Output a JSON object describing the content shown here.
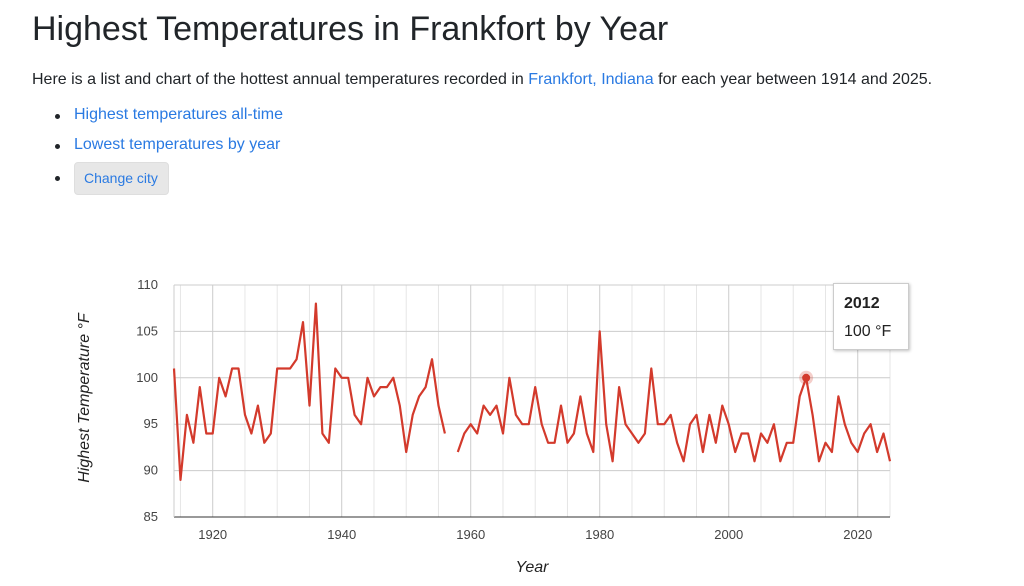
{
  "page": {
    "title": "Highest Temperatures in Frankfort by Year",
    "intro_before": "Here is a list and chart of the hottest annual temperatures recorded in ",
    "intro_link": "Frankfort, Indiana",
    "intro_after": " for each year between 1914 and 2025."
  },
  "links": {
    "all_time": "Highest temperatures all-time",
    "lowest": "Lowest temperatures by year",
    "change_city": "Change city"
  },
  "tooltip": {
    "year": "2012",
    "value": "100 °F"
  },
  "colors": {
    "line": "#d33a2c",
    "grid": "#e6e6e6",
    "grid_major": "#cccccc",
    "link": "#2a7ae2"
  },
  "chart_data": {
    "type": "line",
    "xlabel": "Year",
    "ylabel": "Highest Temperature °F",
    "xlim": [
      1914,
      2025
    ],
    "ylim": [
      85,
      110
    ],
    "x_ticks": [
      1920,
      1940,
      1960,
      1980,
      2000,
      2020
    ],
    "y_ticks": [
      85,
      90,
      95,
      100,
      105,
      110
    ],
    "grid": true,
    "highlight": {
      "x": 2012,
      "y": 100
    },
    "series": [
      {
        "x": [
          1914,
          1915,
          1916,
          1917,
          1918,
          1919,
          1920,
          1921,
          1922,
          1923,
          1924,
          1925,
          1926,
          1927,
          1928,
          1929,
          1930,
          1931,
          1932,
          1933,
          1934,
          1935,
          1936,
          1937,
          1938,
          1939,
          1940,
          1941,
          1942,
          1943,
          1944,
          1945,
          1946,
          1947,
          1948,
          1949,
          1950,
          1951,
          1952,
          1953,
          1954,
          1955,
          1956,
          1957,
          1958,
          1959,
          1960,
          1961,
          1962,
          1963,
          1964,
          1965,
          1966,
          1967,
          1968,
          1969,
          1970,
          1971,
          1972,
          1973,
          1974,
          1975,
          1976,
          1977,
          1978,
          1979,
          1980,
          1981,
          1982,
          1983,
          1984,
          1985,
          1986,
          1987,
          1988,
          1989,
          1990,
          1991,
          1992,
          1993,
          1994,
          1995,
          1996,
          1997,
          1998,
          1999,
          2000,
          2001,
          2002,
          2003,
          2004,
          2005,
          2006,
          2007,
          2008,
          2009,
          2010,
          2011,
          2012,
          2013,
          2014,
          2015,
          2016,
          2017,
          2018,
          2019,
          2020,
          2021,
          2022,
          2023,
          2024,
          2025
        ],
        "values": [
          101,
          89,
          96,
          93,
          99,
          94,
          94,
          100,
          98,
          101,
          101,
          96,
          94,
          97,
          93,
          94,
          101,
          101,
          101,
          102,
          106,
          97,
          108,
          94,
          93,
          101,
          100,
          100,
          96,
          95,
          100,
          98,
          99,
          99,
          100,
          97,
          92,
          96,
          98,
          99,
          102,
          97,
          94,
          null,
          92,
          94,
          95,
          94,
          97,
          96,
          97,
          94,
          100,
          96,
          95,
          95,
          99,
          95,
          93,
          93,
          97,
          93,
          94,
          98,
          94,
          92,
          105,
          95,
          91,
          99,
          95,
          94,
          93,
          94,
          101,
          95,
          95,
          96,
          93,
          91,
          95,
          96,
          92,
          96,
          93,
          97,
          95,
          92,
          94,
          94,
          91,
          94,
          93,
          95,
          91,
          93,
          93,
          98,
          100,
          96,
          91,
          93,
          92,
          98,
          95,
          93,
          92,
          94,
          95,
          92,
          94,
          91
        ]
      }
    ]
  }
}
